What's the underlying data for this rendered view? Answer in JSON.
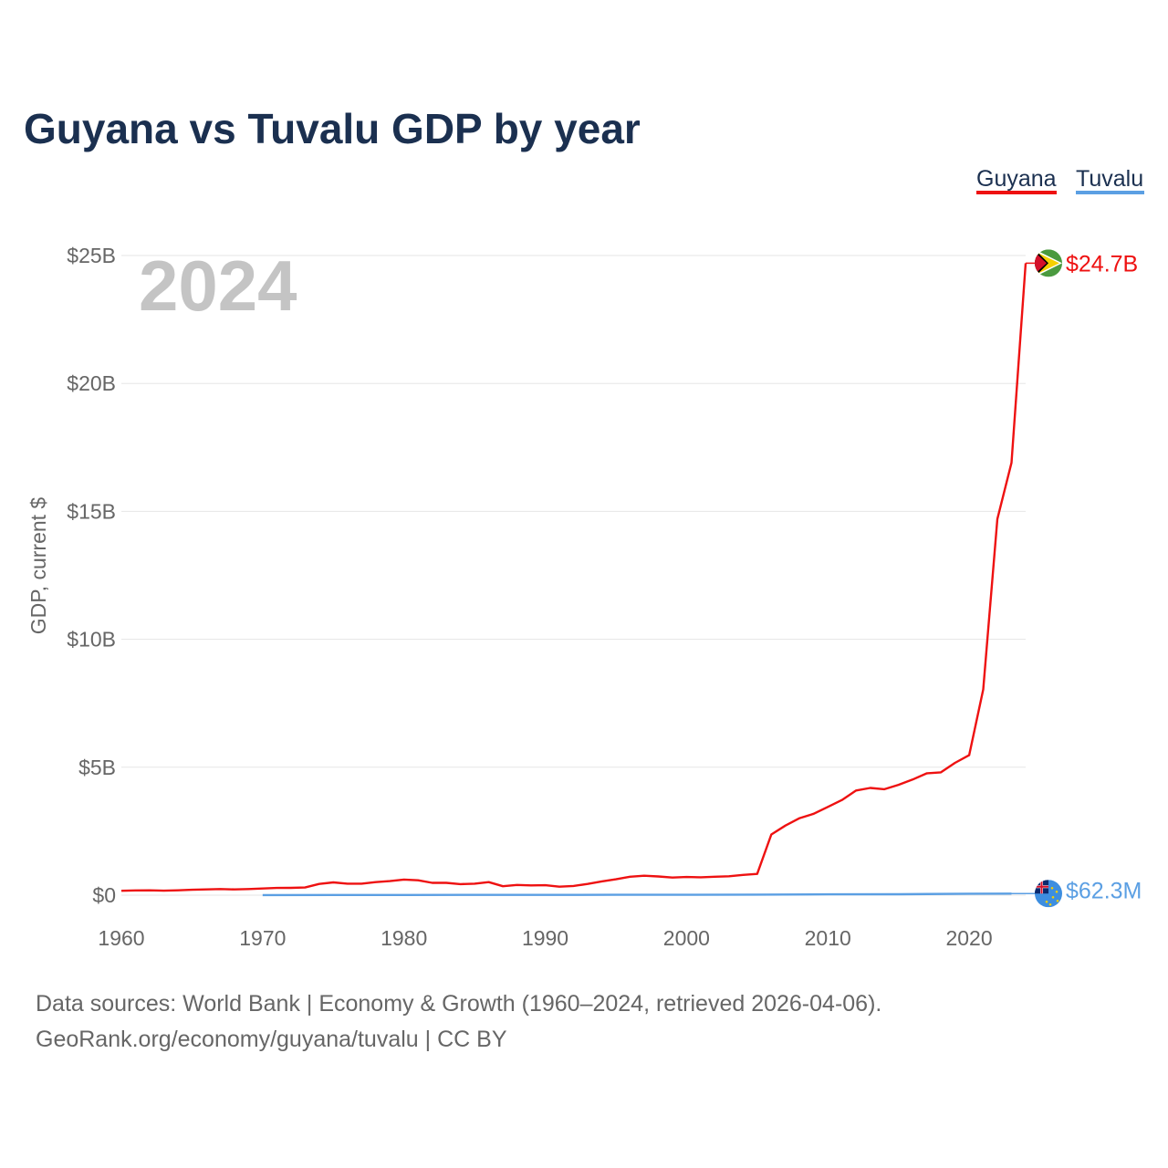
{
  "chart_data": {
    "type": "line",
    "title": "Guyana vs Tuvalu GDP by year",
    "ylabel": "GDP, current $",
    "xlabel": "",
    "xlim": [
      1960,
      2024
    ],
    "ylim": [
      0,
      25000000000
    ],
    "x_ticks": [
      1960,
      1970,
      1980,
      1990,
      2000,
      2010,
      2020
    ],
    "x_tick_labels": [
      "1960",
      "1970",
      "1980",
      "1990",
      "2000",
      "2010",
      "2020"
    ],
    "y_ticks": [
      0,
      5000000000,
      10000000000,
      15000000000,
      20000000000,
      25000000000
    ],
    "y_tick_labels": [
      "$0",
      "$5B",
      "$10B",
      "$15B",
      "$20B",
      "$25B"
    ],
    "grid": true,
    "legend_position": "top-right",
    "year_watermark": "2024",
    "series": [
      {
        "name": "Guyana",
        "color": "#ee1111",
        "end_label": "$24.7B",
        "flag": "guyana-flag",
        "x": [
          1960,
          1961,
          1962,
          1963,
          1964,
          1965,
          1966,
          1967,
          1968,
          1969,
          1970,
          1971,
          1972,
          1973,
          1974,
          1975,
          1976,
          1977,
          1978,
          1979,
          1980,
          1981,
          1982,
          1983,
          1984,
          1985,
          1986,
          1987,
          1988,
          1989,
          1990,
          1991,
          1992,
          1993,
          1994,
          1995,
          1996,
          1997,
          1998,
          1999,
          2000,
          2001,
          2002,
          2003,
          2004,
          2005,
          2006,
          2007,
          2008,
          2009,
          2010,
          2011,
          2012,
          2013,
          2014,
          2015,
          2016,
          2017,
          2018,
          2019,
          2020,
          2021,
          2022,
          2023,
          2024
        ],
        "values": [
          170000000,
          185000000,
          190000000,
          175000000,
          190000000,
          210000000,
          225000000,
          240000000,
          225000000,
          240000000,
          260000000,
          280000000,
          285000000,
          300000000,
          440000000,
          500000000,
          450000000,
          450000000,
          510000000,
          550000000,
          610000000,
          580000000,
          480000000,
          480000000,
          430000000,
          450000000,
          510000000,
          350000000,
          400000000,
          380000000,
          390000000,
          330000000,
          360000000,
          440000000,
          540000000,
          620000000,
          720000000,
          760000000,
          730000000,
          690000000,
          710000000,
          700000000,
          720000000,
          740000000,
          790000000,
          830000000,
          2370000000,
          2720000000,
          3010000000,
          3180000000,
          3450000000,
          3720000000,
          4090000000,
          4190000000,
          4140000000,
          4310000000,
          4520000000,
          4760000000,
          4800000000,
          5170000000,
          5470000000,
          8040000000,
          14700000000,
          16900000000,
          24700000000
        ]
      },
      {
        "name": "Tuvalu",
        "color": "#5b9fe3",
        "end_label": "$62.3M",
        "flag": "tuvalu-flag",
        "x": [
          1970,
          1975,
          1980,
          1985,
          1990,
          1995,
          2000,
          2005,
          2010,
          2015,
          2020,
          2023
        ],
        "values": [
          5000000,
          6000000,
          8000000,
          10000000,
          12000000,
          14000000,
          14000000,
          22000000,
          31000000,
          37000000,
          56000000,
          62300000
        ]
      }
    ]
  },
  "source": {
    "line1": "Data sources: World Bank | Economy & Growth (1960–2024, retrieved 2026-04-06).",
    "line2": "GeoRank.org/economy/guyana/tuvalu | CC BY"
  }
}
